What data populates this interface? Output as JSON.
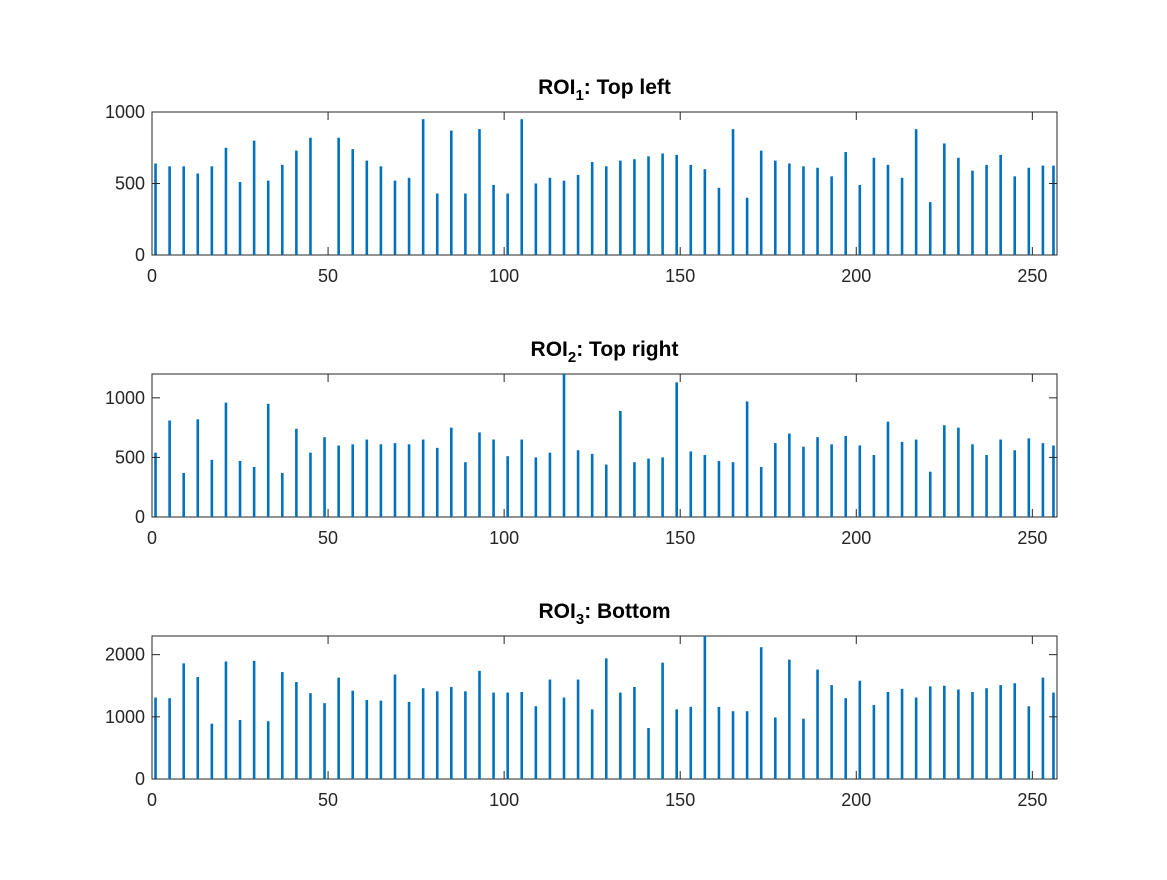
{
  "chart_data": [
    {
      "type": "bar",
      "title": "ROI",
      "title_subscript": "1",
      "title_suffix": ": Top left",
      "xlim": [
        0,
        257
      ],
      "ylim": [
        0,
        1000
      ],
      "xticks": [
        0,
        50,
        100,
        150,
        200,
        250
      ],
      "yticks": [
        0,
        500,
        1000
      ],
      "x": [
        1,
        5,
        9,
        13,
        17,
        21,
        25,
        29,
        33,
        37,
        41,
        45,
        53,
        57,
        61,
        65,
        69,
        73,
        77,
        81,
        85,
        89,
        93,
        97,
        101,
        105,
        109,
        113,
        117,
        121,
        125,
        129,
        133,
        137,
        141,
        145,
        149,
        153,
        157,
        161,
        165,
        169,
        173,
        177,
        181,
        185,
        189,
        193,
        197,
        201,
        205,
        209,
        213,
        217,
        221,
        225,
        229,
        233,
        237,
        241,
        245,
        249,
        253,
        256
      ],
      "values": [
        640,
        620,
        620,
        570,
        620,
        750,
        510,
        800,
        520,
        630,
        730,
        820,
        820,
        740,
        660,
        620,
        520,
        540,
        950,
        430,
        870,
        430,
        880,
        490,
        430,
        950,
        500,
        540,
        520,
        560,
        650,
        620,
        660,
        670,
        690,
        710,
        700,
        630,
        600,
        470,
        880,
        400,
        730,
        660,
        640,
        620,
        610,
        550,
        720,
        490,
        680,
        630,
        540,
        880,
        370,
        780,
        680,
        590,
        630,
        700,
        550,
        610,
        625,
        625
      ],
      "bar_color": "#0072BD",
      "grid": false
    },
    {
      "type": "bar",
      "title": "ROI",
      "title_subscript": "2",
      "title_suffix": ": Top right",
      "xlim": [
        0,
        257
      ],
      "ylim": [
        0,
        1200
      ],
      "xticks": [
        0,
        50,
        100,
        150,
        200,
        250
      ],
      "yticks": [
        0,
        500,
        1000
      ],
      "x": [
        1,
        5,
        9,
        13,
        17,
        21,
        25,
        29,
        33,
        37,
        41,
        45,
        49,
        53,
        57,
        61,
        65,
        69,
        73,
        77,
        81,
        85,
        89,
        93,
        97,
        101,
        105,
        109,
        113,
        117,
        121,
        125,
        129,
        133,
        137,
        141,
        145,
        149,
        153,
        157,
        161,
        165,
        169,
        173,
        177,
        181,
        185,
        189,
        193,
        197,
        201,
        205,
        209,
        213,
        217,
        221,
        225,
        229,
        233,
        237,
        241,
        245,
        249,
        253,
        256
      ],
      "values": [
        540,
        810,
        370,
        820,
        480,
        960,
        470,
        420,
        950,
        370,
        740,
        540,
        670,
        600,
        610,
        650,
        610,
        620,
        610,
        650,
        580,
        750,
        460,
        710,
        650,
        510,
        650,
        500,
        540,
        1200,
        560,
        530,
        440,
        890,
        460,
        490,
        500,
        1130,
        550,
        520,
        470,
        460,
        970,
        420,
        620,
        700,
        590,
        670,
        610,
        680,
        600,
        520,
        800,
        630,
        650,
        380,
        770,
        750,
        610,
        520,
        650,
        560,
        660,
        620,
        600
      ],
      "bar_color": "#0072BD",
      "grid": false
    },
    {
      "type": "bar",
      "title": "ROI",
      "title_subscript": "3",
      "title_suffix": ": Bottom",
      "xlim": [
        0,
        257
      ],
      "ylim": [
        0,
        2300
      ],
      "xticks": [
        0,
        50,
        100,
        150,
        200,
        250
      ],
      "yticks": [
        0,
        1000,
        2000
      ],
      "x": [
        1,
        5,
        9,
        13,
        17,
        21,
        25,
        29,
        33,
        37,
        41,
        45,
        49,
        53,
        57,
        61,
        65,
        69,
        73,
        77,
        81,
        85,
        89,
        93,
        97,
        101,
        105,
        109,
        113,
        117,
        121,
        125,
        129,
        133,
        137,
        141,
        145,
        149,
        153,
        157,
        161,
        165,
        169,
        173,
        177,
        181,
        185,
        189,
        193,
        197,
        201,
        205,
        209,
        213,
        217,
        221,
        225,
        229,
        233,
        237,
        241,
        245,
        249,
        253,
        256
      ],
      "values": [
        1310,
        1300,
        1860,
        1640,
        890,
        1890,
        950,
        1900,
        930,
        1720,
        1560,
        1380,
        1220,
        1630,
        1420,
        1270,
        1260,
        1680,
        1240,
        1460,
        1410,
        1480,
        1410,
        1740,
        1390,
        1390,
        1400,
        1170,
        1600,
        1310,
        1600,
        1120,
        1940,
        1390,
        1480,
        820,
        1870,
        1120,
        1160,
        2300,
        1160,
        1090,
        1090,
        2120,
        990,
        1920,
        970,
        1760,
        1510,
        1300,
        1580,
        1190,
        1400,
        1450,
        1310,
        1490,
        1500,
        1440,
        1400,
        1460,
        1510,
        1540,
        1170,
        1630,
        1390
      ],
      "bar_color": "#0072BD",
      "grid": false
    }
  ]
}
